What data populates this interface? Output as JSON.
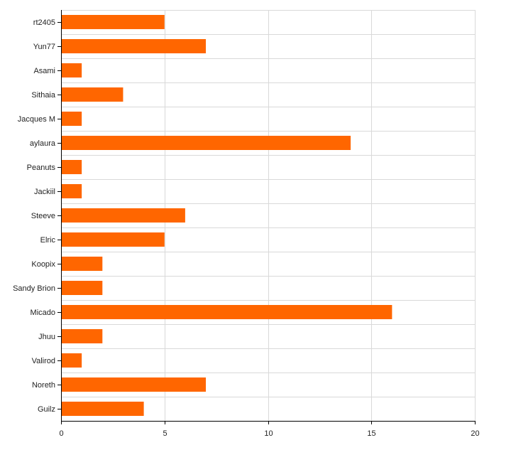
{
  "chart_data": {
    "type": "bar",
    "orientation": "horizontal",
    "categories": [
      "rt2405",
      "Yun77",
      "Asami",
      "Sithaia",
      "Jacques M",
      "aylaura",
      "Peanuts",
      "Jackiil",
      "Steeve",
      "Elric",
      "Koopix",
      "Sandy Brion",
      "Micado",
      "Jhuu",
      "Valirod",
      "Noreth",
      "Guilz"
    ],
    "values": [
      5,
      7,
      1,
      3,
      1,
      14,
      1,
      1,
      6,
      5,
      2,
      2,
      16,
      2,
      1,
      7,
      4
    ],
    "xlim": [
      0,
      20
    ],
    "x_ticks": [
      0,
      5,
      10,
      15,
      20
    ],
    "title": "",
    "xlabel": "",
    "ylabel": "",
    "grid": true,
    "legend": "none",
    "bar_color": "#ff6600",
    "grid_color": "#d9d9d9"
  }
}
